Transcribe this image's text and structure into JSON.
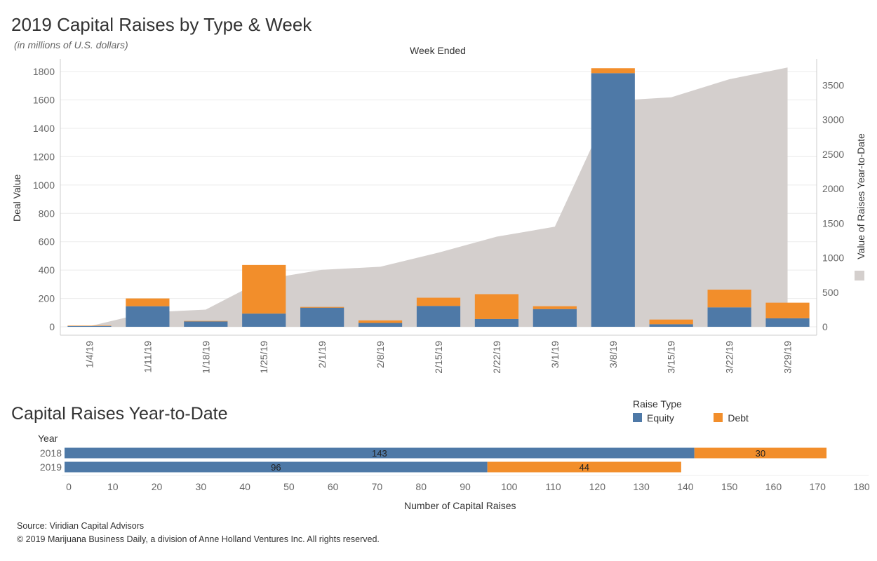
{
  "title": "2019 Capital Raises by Type & Week",
  "subtitle": "(in millions of U.S. dollars)",
  "colors": {
    "equity": "#4e79a7",
    "debt": "#f28e2b",
    "ytd_area": "#d4cfcd",
    "grid": "#ebebeb",
    "axis": "#cccccc",
    "tick": "#666666"
  },
  "chart_data": [
    {
      "type": "bar",
      "stacked": true,
      "title": "2019 Capital Raises by Type & Week",
      "subtitle": "(in millions of U.S. dollars)",
      "xlabel_top": "Week Ended",
      "ylabel": "Deal Value",
      "ylabel_right": "Value of Raises Year-to-Date",
      "categories": [
        "1/4/19",
        "1/11/19",
        "1/18/19",
        "1/25/19",
        "2/1/19",
        "2/8/19",
        "2/15/19",
        "2/22/19",
        "3/1/19",
        "3/8/19",
        "3/15/19",
        "3/22/19",
        "3/29/19"
      ],
      "series": [
        {
          "name": "Equity",
          "values": [
            5,
            145,
            38,
            93,
            135,
            27,
            147,
            55,
            125,
            1789,
            18,
            137,
            60
          ]
        },
        {
          "name": "Debt",
          "values": [
            3,
            55,
            3,
            343,
            5,
            18,
            58,
            175,
            20,
            35,
            33,
            125,
            110
          ]
        }
      ],
      "area_series": {
        "name": "Value of Raises Year-to-Date",
        "axis": "right",
        "values": [
          8,
          208,
          249,
          685,
          825,
          870,
          1075,
          1305,
          1450,
          3274,
          3325,
          3587,
          3757
        ]
      },
      "ylim": [
        0,
        1850
      ],
      "yticks": [
        0,
        200,
        400,
        600,
        800,
        1000,
        1200,
        1400,
        1600,
        1800
      ],
      "ylim_right": [
        0,
        3800
      ],
      "yticks_right": [
        0,
        500,
        1000,
        1500,
        2000,
        2500,
        3000,
        3500
      ],
      "grid": true
    },
    {
      "type": "bar",
      "orientation": "horizontal",
      "stacked": true,
      "title": "Capital Raises Year-to-Date",
      "xlabel": "Number of Capital Raises",
      "ylabel": "Year",
      "categories": [
        "2018",
        "2019"
      ],
      "series": [
        {
          "name": "Equity",
          "values": [
            143,
            96
          ],
          "labels": [
            "143",
            "96"
          ]
        },
        {
          "name": "Debt",
          "values": [
            30,
            44
          ],
          "labels": [
            "30",
            "44"
          ]
        }
      ],
      "xlim": [
        0,
        180
      ],
      "xticks": [
        0,
        10,
        20,
        30,
        40,
        50,
        60,
        70,
        80,
        90,
        100,
        110,
        120,
        130,
        140,
        150,
        160,
        170,
        180
      ],
      "legend": {
        "title": "Raise Type",
        "position": "top-right",
        "items": [
          "Equity",
          "Debt"
        ]
      },
      "grid": false
    }
  ],
  "footer": {
    "source": "Source: Viridian Capital Advisors",
    "copyright": "© 2019 Marijuana Business Daily, a division of Anne Holland Ventures Inc. All rights reserved."
  }
}
